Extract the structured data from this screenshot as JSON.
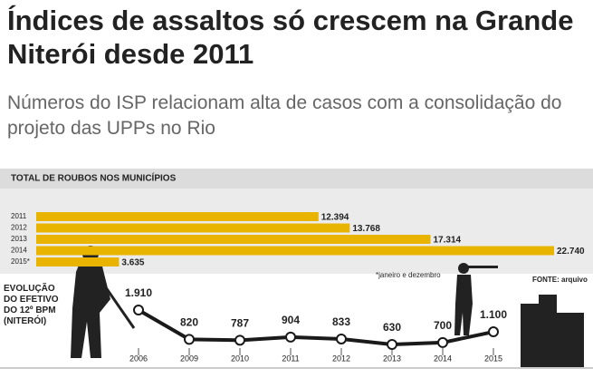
{
  "headline": "Índices de assaltos só crescem na Grande Niterói desde 2011",
  "subheadline": "Números do ISP relacionam alta de casos com a consolidação do projeto das UPPs no Rio",
  "chart_data": [
    {
      "type": "bar",
      "title": "TOTAL DE ROUBOS NOS MUNICÍPIOS",
      "categories": [
        "2011",
        "2012",
        "2013",
        "2014",
        "2015*"
      ],
      "values": [
        12394,
        13768,
        17314,
        22740,
        3635
      ],
      "value_labels": [
        "12.394",
        "13.768",
        "17.314",
        "22.740",
        "3.635"
      ],
      "color": "#e8b400",
      "note": "*janeiro e dezembro",
      "source": "FONTE: arquivo"
    },
    {
      "type": "line",
      "title": "EVOLUÇÃO DO EFETIVO DO 12º BPM (NITERÓI)",
      "categories": [
        "2006",
        "2009",
        "2010",
        "2011",
        "2012",
        "2013",
        "2014",
        "2015"
      ],
      "values": [
        1910,
        820,
        787,
        904,
        833,
        630,
        700,
        1100
      ],
      "value_labels": [
        "1.910",
        "820",
        "787",
        "904",
        "833",
        "630",
        "700",
        "1.100"
      ],
      "color": "#1a1a1a"
    }
  ]
}
